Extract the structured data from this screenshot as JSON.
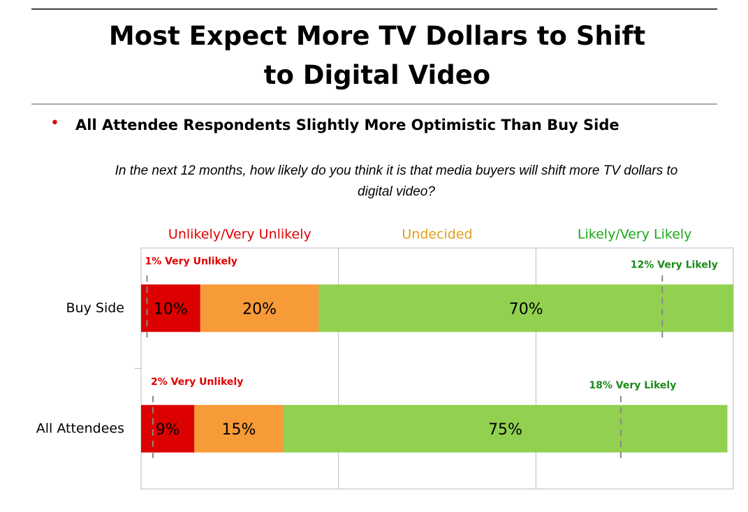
{
  "chart_data": {
    "type": "stacked-bar-horizontal",
    "title": "Most Expect More TV Dollars to Shift to Digital Video",
    "subtitle": "All Attendee Respondents Slightly More Optimistic Than Buy Side",
    "question": "In the next 12 months, how likely do you think it is that media buyers will shift more TV dollars to digital video?",
    "categories": [
      "Buy Side",
      "All Attendees"
    ],
    "xlim": [
      0,
      100
    ],
    "series": [
      {
        "name": "Unlikely/Very Unlikely",
        "color": "#dd0000",
        "label_color": "#e00000",
        "values": [
          10,
          9
        ],
        "value_labels": [
          "10%",
          "9%"
        ],
        "sub_values": [
          1,
          2
        ],
        "sub_labels": [
          "1% Very Unlikely",
          "2% Very Unlikely"
        ]
      },
      {
        "name": "Undecided",
        "color": "#f79a38",
        "label_color": "#e0a020",
        "values": [
          20,
          15
        ],
        "value_labels": [
          "20%",
          "15%"
        ]
      },
      {
        "name": "Likely/Very Likely",
        "color": "#92d050",
        "label_color": "#1aa81a",
        "values": [
          70,
          75
        ],
        "value_labels": [
          "70%",
          "75%"
        ],
        "sub_values": [
          12,
          18
        ],
        "sub_labels": [
          "12% Very Likely",
          "18% Very Likely"
        ]
      }
    ]
  }
}
